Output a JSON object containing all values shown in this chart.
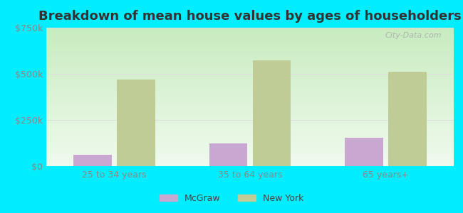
{
  "title": "Breakdown of mean house values by ages of householders",
  "categories": [
    "25 to 34 years",
    "35 to 64 years",
    "65 years+"
  ],
  "mcgraw_values": [
    60000,
    125000,
    155000
  ],
  "newyork_values": [
    468000,
    572000,
    510000
  ],
  "mcgraw_color": "#c8a8d0",
  "newyork_color": "#c0cc96",
  "background_outer": "#00eeff",
  "ylim": [
    0,
    750000
  ],
  "yticks": [
    0,
    250000,
    500000,
    750000
  ],
  "ytick_labels": [
    "$0",
    "$250k",
    "$500k",
    "$750k"
  ],
  "legend_labels": [
    "McGraw",
    "New York"
  ],
  "bar_width": 0.28,
  "title_fontsize": 13,
  "tick_fontsize": 9,
  "legend_fontsize": 9,
  "grid_color": "#dddddd",
  "tick_color": "#888888",
  "watermark": "City-Data.com"
}
